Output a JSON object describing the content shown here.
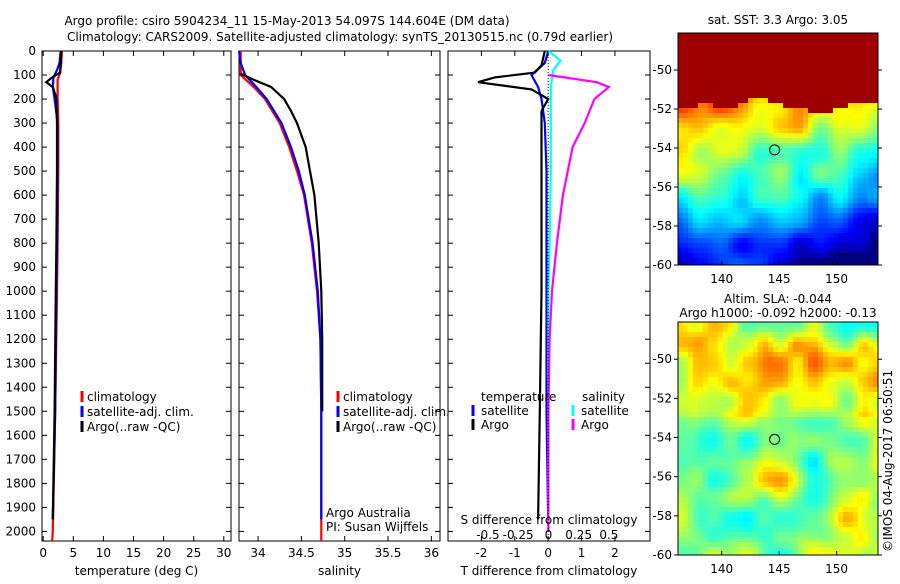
{
  "title": {
    "line1": "Argo profile: csiro 5904234_11 15-May-2013 54.097S 144.604E (DM data)",
    "line2": "Climatology: CARS2009. Satellite-adjusted climatology: synTS_20130515.nc (0.79d earlier)"
  },
  "depth_ticks": [
    "0",
    "100",
    "200",
    "300",
    "400",
    "500",
    "600",
    "700",
    "800",
    "900",
    "1000",
    "1100",
    "1200",
    "1300",
    "1400",
    "1500",
    "1600",
    "1700",
    "1800",
    "1900",
    "2000"
  ],
  "colors": {
    "climatology": "#ff0000",
    "satellite": "#0000ff",
    "argo": "#000000",
    "sal_satellite": "#00ffff",
    "sal_argo": "#ff00ff"
  },
  "chart_data": [
    {
      "type": "line",
      "xlabel": "temperature (deg C)",
      "xticks": [
        "0",
        "5",
        "10",
        "15",
        "20",
        "25",
        "30"
      ],
      "xlim": [
        -0.2,
        31.2
      ],
      "ylim": [
        2040,
        0
      ],
      "legend": [
        "climatology",
        "satellite-adj. clim.",
        "Argo(..raw -QC)"
      ],
      "series": [
        {
          "name": "climatology",
          "depth": [
            0,
            50,
            90,
            120,
            150,
            200,
            300,
            500,
            800,
            1000,
            1500,
            2000,
            2040
          ],
          "values": [
            3.1,
            3.0,
            2.8,
            2.4,
            2.4,
            2.4,
            2.5,
            2.5,
            2.4,
            2.3,
            2.0,
            1.6,
            1.5
          ]
        },
        {
          "name": "satellite-adj. clim.",
          "depth": [
            0,
            50,
            80,
            110,
            150,
            200,
            300,
            500,
            800,
            1000,
            1500,
            1950
          ],
          "values": [
            2.9,
            2.7,
            2.3,
            1.7,
            1.6,
            1.9,
            2.4,
            2.4,
            2.3,
            2.2,
            2.0,
            1.6
          ]
        },
        {
          "name": "Argo",
          "depth": [
            0,
            50,
            90,
            110,
            130,
            150,
            180,
            200,
            300,
            500,
            800,
            1000,
            1500,
            1950
          ],
          "values": [
            3.0,
            2.9,
            2.8,
            1.5,
            0.5,
            1.6,
            2.0,
            2.2,
            2.3,
            2.3,
            2.2,
            2.1,
            1.9,
            1.6
          ]
        }
      ]
    },
    {
      "type": "line",
      "xlabel": "salinity",
      "xticks": [
        "34",
        "34.5",
        "35",
        "35.5",
        "36"
      ],
      "xlim": [
        33.78,
        36.1
      ],
      "ylim": [
        2040,
        0
      ],
      "legend": [
        "climatology",
        "satellite-adj. clim.",
        "Argo(..raw -QC)"
      ],
      "annotation": [
        "Argo Australia",
        "PI: Susan Wijffels"
      ],
      "series": [
        {
          "name": "climatology",
          "depth": [
            0,
            100,
            150,
            200,
            300,
            400,
            500,
            600,
            800,
            1000,
            1200,
            1500,
            2000,
            2040
          ],
          "values": [
            33.8,
            33.8,
            33.95,
            34.08,
            34.25,
            34.36,
            34.45,
            34.53,
            34.62,
            34.68,
            34.72,
            34.73,
            34.73,
            34.73
          ]
        },
        {
          "name": "satellite-adj. clim.",
          "depth": [
            0,
            50,
            100,
            150,
            200,
            300,
            400,
            500,
            600,
            800,
            1000,
            1200,
            1500,
            1950
          ],
          "values": [
            33.78,
            33.8,
            33.85,
            33.98,
            34.1,
            34.27,
            34.38,
            34.47,
            34.54,
            34.63,
            34.69,
            34.72,
            34.73,
            34.73
          ]
        },
        {
          "name": "Argo",
          "depth": [
            95,
            120,
            150,
            200,
            250,
            300,
            400,
            500,
            600,
            800,
            1000,
            1200,
            1500
          ],
          "values": [
            33.8,
            33.95,
            34.15,
            34.3,
            34.38,
            34.45,
            34.55,
            34.6,
            34.65,
            34.7,
            34.73,
            34.74,
            34.74
          ]
        }
      ]
    },
    {
      "type": "line",
      "xlabel": "T difference from climatology",
      "xticks": [
        "-2",
        "-1",
        "0",
        "1",
        "2"
      ],
      "xlim": [
        -3.0,
        3.05
      ],
      "s_label": "S difference from climatology",
      "s_ticks": [
        "-0.5",
        "-0.25",
        "0",
        "0.25",
        "0.5"
      ],
      "s_lim": [
        -0.83,
        0.84
      ],
      "ylim": [
        2040,
        0
      ],
      "legend": {
        "temperature": "temperature",
        "salinity": "salinity",
        "satellite": "satellite",
        "argo": "Argo"
      },
      "series": [
        {
          "name": "T satellite",
          "kind": "T",
          "depth": [
            0,
            50,
            100,
            150,
            200,
            300,
            500,
            1000,
            1500,
            1950
          ],
          "values": [
            0.0,
            -0.1,
            -0.5,
            -0.3,
            -0.2,
            -0.1,
            -0.05,
            -0.05,
            -0.05,
            0.0
          ]
        },
        {
          "name": "T Argo",
          "kind": "T",
          "depth": [
            0,
            60,
            90,
            110,
            130,
            160,
            200,
            250,
            300,
            500,
            1000,
            1500,
            1950
          ],
          "values": [
            -0.1,
            -0.2,
            -0.4,
            -1.6,
            -2.1,
            -0.5,
            0.0,
            -0.2,
            -0.2,
            -0.2,
            -0.2,
            -0.25,
            -0.3
          ]
        },
        {
          "name": "S satellite",
          "kind": "S",
          "depth": [
            0,
            40,
            80,
            150,
            300,
            500,
            800,
            1000,
            2000
          ],
          "values": [
            0.0,
            0.1,
            0.04,
            0.02,
            0.02,
            0.02,
            0.01,
            0.0,
            0.0
          ]
        },
        {
          "name": "S Argo",
          "kind": "S",
          "depth": [
            100,
            130,
            150,
            200,
            300,
            400,
            600,
            800,
            1000,
            1200,
            1500,
            2000
          ],
          "values": [
            0.0,
            0.4,
            0.5,
            0.38,
            0.3,
            0.2,
            0.12,
            0.07,
            0.03,
            0.01,
            0.0,
            0.0
          ]
        }
      ]
    },
    {
      "type": "heatmap",
      "title": "sat. SST: 3.3 Argo: 3.05",
      "xticks": [
        "140",
        "145",
        "150"
      ],
      "yticks": [
        "-50",
        "-52",
        "-54",
        "-56",
        "-58",
        "-60"
      ],
      "xlim": [
        136.2,
        153.6
      ],
      "ylim": [
        -60,
        -48.1
      ],
      "marker": {
        "lon": 144.604,
        "lat": -54.097
      }
    },
    {
      "type": "heatmap",
      "title": "Altim. SLA: -0.044",
      "subtitle": "Argo h1000: -0.092 h2000: -0.13",
      "xticks": [
        "140",
        "145",
        "150"
      ],
      "yticks": [
        "-50",
        "-52",
        "-54",
        "-56",
        "-58",
        "-60"
      ],
      "xlim": [
        136.2,
        153.6
      ],
      "ylim": [
        -60,
        -48.1
      ],
      "marker": {
        "lon": 144.604,
        "lat": -54.097
      }
    }
  ],
  "credit": "©IMOS 04-Aug-2017 06:50:51"
}
